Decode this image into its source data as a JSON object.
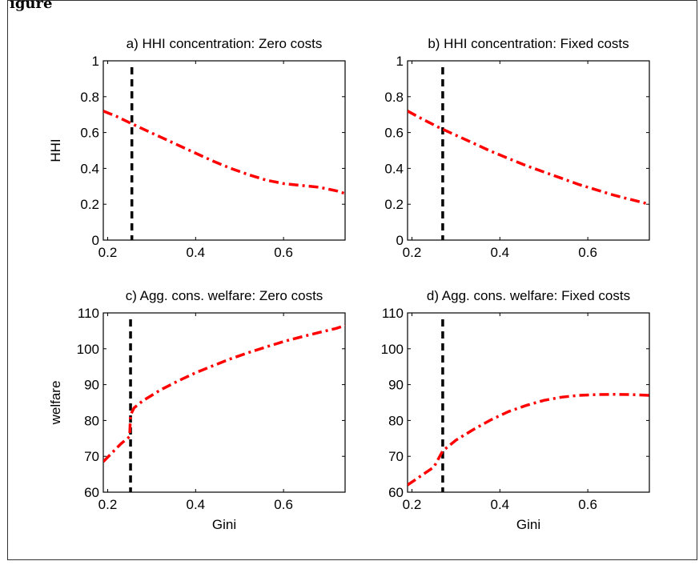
{
  "figure_title": "igure",
  "colors": {
    "model_line": "#ff0000",
    "observed_line": "#000000",
    "axis": "#000000"
  },
  "chart_data": [
    {
      "type": "line",
      "title": "a) HHI concentration: Zero costs",
      "xlabel": "",
      "ylabel": "HHI",
      "xlim": [
        0.19,
        0.74
      ],
      "ylim": [
        0,
        1
      ],
      "xticks": [
        "0.2",
        "0.4",
        "0.6"
      ],
      "yticks": [
        "0",
        "0.2",
        "0.4",
        "0.6",
        "0.8",
        "1"
      ],
      "xtick_values": [
        0.2,
        0.4,
        0.6
      ],
      "ytick_values": [
        0,
        0.2,
        0.4,
        0.6,
        0.8,
        1
      ],
      "vline_x": 0.255,
      "series": [
        {
          "style": "dash-dot",
          "color": "#ff0000",
          "x": [
            0.19,
            0.22,
            0.25,
            0.28,
            0.32,
            0.36,
            0.4,
            0.44,
            0.48,
            0.52,
            0.56,
            0.6,
            0.64,
            0.68,
            0.72,
            0.74
          ],
          "y": [
            0.72,
            0.69,
            0.655,
            0.62,
            0.575,
            0.53,
            0.485,
            0.44,
            0.4,
            0.365,
            0.335,
            0.315,
            0.305,
            0.295,
            0.275,
            0.26
          ]
        }
      ]
    },
    {
      "type": "line",
      "title": "b) HHI concentration: Fixed costs",
      "xlabel": "",
      "ylabel": "",
      "xlim": [
        0.19,
        0.74
      ],
      "ylim": [
        0,
        1
      ],
      "xticks": [
        "0.2",
        "0.4",
        "0.6"
      ],
      "yticks": [
        "0",
        "0.2",
        "0.4",
        "0.6",
        "0.8",
        "1"
      ],
      "xtick_values": [
        0.2,
        0.4,
        0.6
      ],
      "ytick_values": [
        0,
        0.2,
        0.4,
        0.6,
        0.8,
        1
      ],
      "vline_x": 0.27,
      "series": [
        {
          "style": "dash-dot",
          "color": "#ff0000",
          "x": [
            0.19,
            0.22,
            0.26,
            0.3,
            0.34,
            0.38,
            0.42,
            0.46,
            0.5,
            0.54,
            0.58,
            0.62,
            0.66,
            0.7,
            0.74
          ],
          "y": [
            0.72,
            0.68,
            0.63,
            0.585,
            0.54,
            0.495,
            0.455,
            0.415,
            0.38,
            0.345,
            0.31,
            0.28,
            0.25,
            0.225,
            0.2
          ]
        }
      ]
    },
    {
      "type": "line",
      "title": "c) Agg. cons. welfare: Zero costs",
      "xlabel": "Gini",
      "ylabel": "welfare",
      "xlim": [
        0.19,
        0.74
      ],
      "ylim": [
        60,
        110
      ],
      "xticks": [
        "0.2",
        "0.4",
        "0.6"
      ],
      "yticks": [
        "60",
        "70",
        "80",
        "90",
        "100",
        "110"
      ],
      "xtick_values": [
        0.2,
        0.4,
        0.6
      ],
      "ytick_values": [
        60,
        70,
        80,
        90,
        100,
        110
      ],
      "vline_x": 0.252,
      "series": [
        {
          "style": "dash-dot",
          "color": "#ff0000",
          "x": [
            0.19,
            0.21,
            0.23,
            0.25,
            0.252,
            0.26,
            0.28,
            0.32,
            0.36,
            0.4,
            0.44,
            0.48,
            0.52,
            0.56,
            0.6,
            0.64,
            0.68,
            0.72,
            0.74
          ],
          "y": [
            68.5,
            71.0,
            73.5,
            75.5,
            81.5,
            83.5,
            85.5,
            88.5,
            91.0,
            93.3,
            95.3,
            97.2,
            98.9,
            100.5,
            102.0,
            103.3,
            104.5,
            105.7,
            106.5
          ]
        }
      ]
    },
    {
      "type": "line",
      "title": "d) Agg. cons. welfare: Fixed costs",
      "xlabel": "Gini",
      "ylabel": "",
      "xlim": [
        0.19,
        0.74
      ],
      "ylim": [
        60,
        110
      ],
      "xticks": [
        "0.2",
        "0.4",
        "0.6"
      ],
      "yticks": [
        "60",
        "70",
        "80",
        "90",
        "100",
        "110"
      ],
      "xtick_values": [
        0.2,
        0.4,
        0.6
      ],
      "ytick_values": [
        60,
        70,
        80,
        90,
        100,
        110
      ],
      "vline_x": 0.27,
      "series": [
        {
          "style": "dash-dot",
          "color": "#ff0000",
          "x": [
            0.19,
            0.22,
            0.25,
            0.27,
            0.3,
            0.34,
            0.38,
            0.42,
            0.46,
            0.5,
            0.54,
            0.58,
            0.62,
            0.66,
            0.7,
            0.74
          ],
          "y": [
            62.0,
            64.5,
            67.0,
            71.5,
            74.5,
            77.5,
            80.2,
            82.5,
            84.2,
            85.6,
            86.5,
            87.0,
            87.2,
            87.3,
            87.2,
            87.0
          ]
        }
      ]
    }
  ]
}
